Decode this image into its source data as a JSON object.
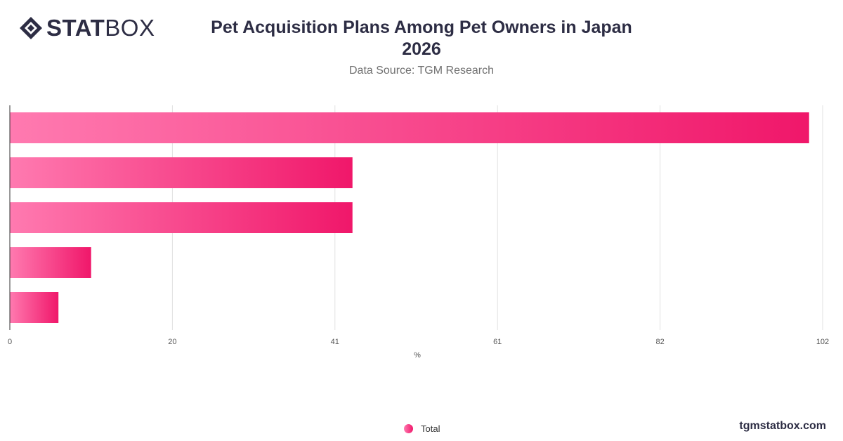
{
  "header": {
    "logo_text_bold": "STAT",
    "logo_text_light": "BOX",
    "title_line1": "Pet Acquisition Plans Among Pet Owners in Japan",
    "title_line2": "2026",
    "subtitle": "Data Source: TGM Research"
  },
  "footer": {
    "legend_label": "Total",
    "brand_url": "tgmstatbox.com"
  },
  "colors": {
    "bar_start": "#ff7ab0",
    "bar_end": "#f0176a",
    "grid": "#e0e0e0",
    "axis": "#333333"
  },
  "chart_data": {
    "type": "bar",
    "orientation": "horizontal",
    "title": "Pet Acquisition Plans Among Pet Owners in Japan 2026",
    "subtitle": "Data Source: TGM Research",
    "xlabel": "%",
    "ylabel": "",
    "xlim": [
      0,
      102
    ],
    "x_ticks": [
      "0",
      "20",
      "41",
      "61",
      "82",
      "102"
    ],
    "grid": true,
    "legend_position": "bottom",
    "categories": [
      "",
      "",
      "",
      "",
      ""
    ],
    "series": [
      {
        "name": "Total",
        "values": [
          100.3,
          43.0,
          43.0,
          10.2,
          6.1
        ]
      }
    ]
  }
}
